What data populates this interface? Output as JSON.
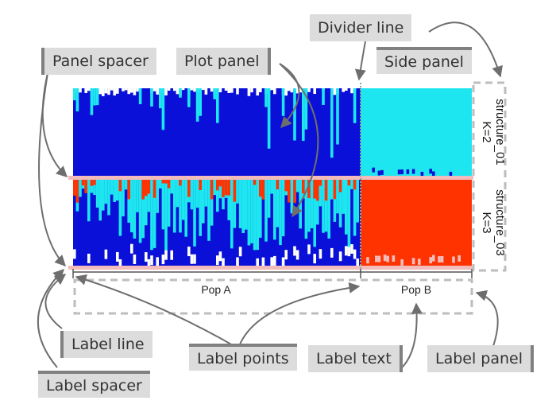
{
  "callouts": {
    "panel_spacer": "Panel spacer",
    "plot_panel": "Plot panel",
    "divider_line": "Divider line",
    "side_panel": "Side panel",
    "label_line": "Label line",
    "label_spacer": "Label spacer",
    "label_points": "Label points",
    "label_text": "Label text",
    "label_panel": "Label panel"
  },
  "populations": [
    "Pop A",
    "Pop B"
  ],
  "strips": [
    {
      "name": "structure_01",
      "k": "K=2"
    },
    {
      "name": "structure_03",
      "k": "K=3"
    }
  ],
  "colors": {
    "cluster_1": "#0a10d8",
    "cluster_2": "#1ee6f0",
    "cluster_3": "#ff3300",
    "spacer": "#f2bcbc",
    "callout_bg": "#dcdcdc",
    "callout_bar": "#808080",
    "arrow": "#6e6e6e",
    "dashed": "#bdbdbd"
  }
}
